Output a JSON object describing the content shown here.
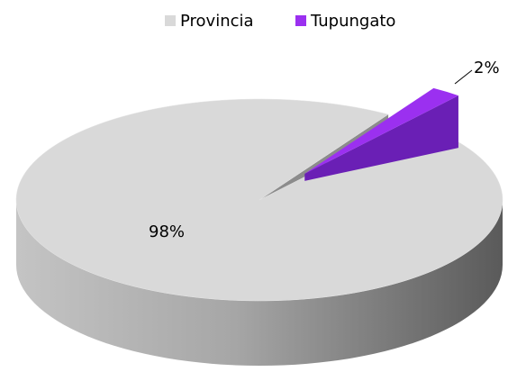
{
  "chart_data": {
    "type": "pie",
    "categories": [
      "Provincia",
      "Tupungato"
    ],
    "values": [
      98,
      2
    ],
    "value_labels": [
      "98%",
      "2%"
    ],
    "colors": [
      "#d9d9d9",
      "#9b30f0"
    ],
    "legend": "top"
  }
}
